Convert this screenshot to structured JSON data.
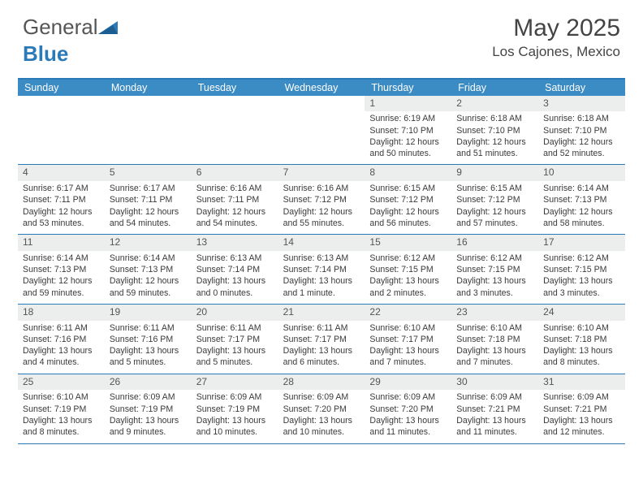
{
  "brand": {
    "part1": "General",
    "part2": "Blue"
  },
  "title": "May 2025",
  "location": "Los Cajones, Mexico",
  "colors": {
    "brand_blue": "#2a7ab8",
    "header_bar": "#3b8bc4",
    "daynum_bg": "#eceded",
    "text": "#333333",
    "border": "#2a7ab8"
  },
  "dow": [
    "Sunday",
    "Monday",
    "Tuesday",
    "Wednesday",
    "Thursday",
    "Friday",
    "Saturday"
  ],
  "weeks": [
    [
      null,
      null,
      null,
      null,
      {
        "n": "1",
        "sr": "6:19 AM",
        "ss": "7:10 PM",
        "dl": "12 hours and 50 minutes."
      },
      {
        "n": "2",
        "sr": "6:18 AM",
        "ss": "7:10 PM",
        "dl": "12 hours and 51 minutes."
      },
      {
        "n": "3",
        "sr": "6:18 AM",
        "ss": "7:10 PM",
        "dl": "12 hours and 52 minutes."
      }
    ],
    [
      {
        "n": "4",
        "sr": "6:17 AM",
        "ss": "7:11 PM",
        "dl": "12 hours and 53 minutes."
      },
      {
        "n": "5",
        "sr": "6:17 AM",
        "ss": "7:11 PM",
        "dl": "12 hours and 54 minutes."
      },
      {
        "n": "6",
        "sr": "6:16 AM",
        "ss": "7:11 PM",
        "dl": "12 hours and 54 minutes."
      },
      {
        "n": "7",
        "sr": "6:16 AM",
        "ss": "7:12 PM",
        "dl": "12 hours and 55 minutes."
      },
      {
        "n": "8",
        "sr": "6:15 AM",
        "ss": "7:12 PM",
        "dl": "12 hours and 56 minutes."
      },
      {
        "n": "9",
        "sr": "6:15 AM",
        "ss": "7:12 PM",
        "dl": "12 hours and 57 minutes."
      },
      {
        "n": "10",
        "sr": "6:14 AM",
        "ss": "7:13 PM",
        "dl": "12 hours and 58 minutes."
      }
    ],
    [
      {
        "n": "11",
        "sr": "6:14 AM",
        "ss": "7:13 PM",
        "dl": "12 hours and 59 minutes."
      },
      {
        "n": "12",
        "sr": "6:14 AM",
        "ss": "7:13 PM",
        "dl": "12 hours and 59 minutes."
      },
      {
        "n": "13",
        "sr": "6:13 AM",
        "ss": "7:14 PM",
        "dl": "13 hours and 0 minutes."
      },
      {
        "n": "14",
        "sr": "6:13 AM",
        "ss": "7:14 PM",
        "dl": "13 hours and 1 minute."
      },
      {
        "n": "15",
        "sr": "6:12 AM",
        "ss": "7:15 PM",
        "dl": "13 hours and 2 minutes."
      },
      {
        "n": "16",
        "sr": "6:12 AM",
        "ss": "7:15 PM",
        "dl": "13 hours and 3 minutes."
      },
      {
        "n": "17",
        "sr": "6:12 AM",
        "ss": "7:15 PM",
        "dl": "13 hours and 3 minutes."
      }
    ],
    [
      {
        "n": "18",
        "sr": "6:11 AM",
        "ss": "7:16 PM",
        "dl": "13 hours and 4 minutes."
      },
      {
        "n": "19",
        "sr": "6:11 AM",
        "ss": "7:16 PM",
        "dl": "13 hours and 5 minutes."
      },
      {
        "n": "20",
        "sr": "6:11 AM",
        "ss": "7:17 PM",
        "dl": "13 hours and 5 minutes."
      },
      {
        "n": "21",
        "sr": "6:11 AM",
        "ss": "7:17 PM",
        "dl": "13 hours and 6 minutes."
      },
      {
        "n": "22",
        "sr": "6:10 AM",
        "ss": "7:17 PM",
        "dl": "13 hours and 7 minutes."
      },
      {
        "n": "23",
        "sr": "6:10 AM",
        "ss": "7:18 PM",
        "dl": "13 hours and 7 minutes."
      },
      {
        "n": "24",
        "sr": "6:10 AM",
        "ss": "7:18 PM",
        "dl": "13 hours and 8 minutes."
      }
    ],
    [
      {
        "n": "25",
        "sr": "6:10 AM",
        "ss": "7:19 PM",
        "dl": "13 hours and 8 minutes."
      },
      {
        "n": "26",
        "sr": "6:09 AM",
        "ss": "7:19 PM",
        "dl": "13 hours and 9 minutes."
      },
      {
        "n": "27",
        "sr": "6:09 AM",
        "ss": "7:19 PM",
        "dl": "13 hours and 10 minutes."
      },
      {
        "n": "28",
        "sr": "6:09 AM",
        "ss": "7:20 PM",
        "dl": "13 hours and 10 minutes."
      },
      {
        "n": "29",
        "sr": "6:09 AM",
        "ss": "7:20 PM",
        "dl": "13 hours and 11 minutes."
      },
      {
        "n": "30",
        "sr": "6:09 AM",
        "ss": "7:21 PM",
        "dl": "13 hours and 11 minutes."
      },
      {
        "n": "31",
        "sr": "6:09 AM",
        "ss": "7:21 PM",
        "dl": "13 hours and 12 minutes."
      }
    ]
  ],
  "labels": {
    "sunrise": "Sunrise: ",
    "sunset": "Sunset: ",
    "daylight": "Daylight: "
  }
}
